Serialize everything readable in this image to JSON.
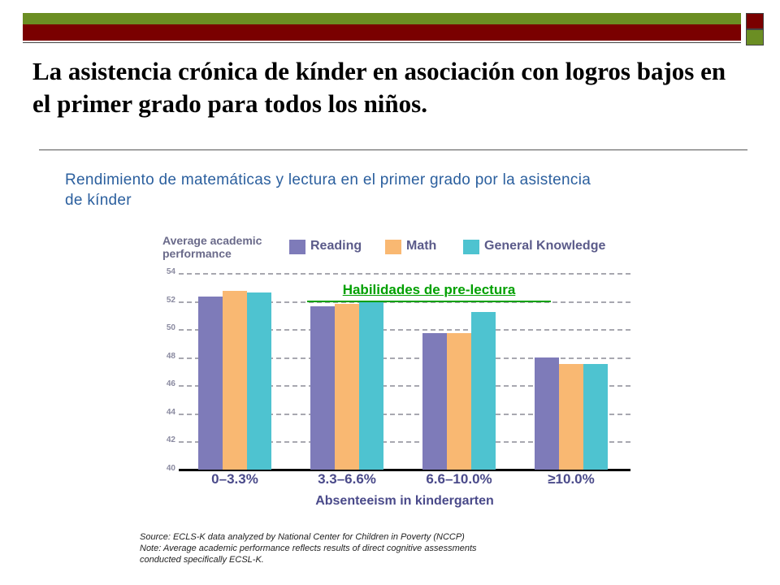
{
  "slide": {
    "title": "La asistencia crónica de kínder en asociación con logros bajos en el primer grado para todos los niños.",
    "subtitle": "Rendimiento de matemáticas y lectura en el primer grado por la asistencia de kínder",
    "annotation": "Habilidades de pre-lectura",
    "source_note": "Source: ECLS-K  data analyzed by National Center for Children in Poverty (NCCP)",
    "performance_note": "Note: Average academic performance reflects results of direct cognitive assessments",
    "ecsl_note": "conducted specifically  ECSL-K.",
    "colors": {
      "band_green": "#6b8e23",
      "band_maroon": "#7a0000",
      "title_blue": "#2b5f9e",
      "annotation_green": "#00a000"
    }
  },
  "chart_data": {
    "type": "bar",
    "ylabel": "Average academic performance",
    "xlabel": "Absenteeism in kindergarten",
    "categories": [
      "0–3.3%",
      "3.3–6.6%",
      "6.6–10.0%",
      "≥10.0%"
    ],
    "series": [
      {
        "name": "Reading",
        "color": "#7e7bb9",
        "values": [
          52.3,
          51.6,
          49.7,
          48.0
        ]
      },
      {
        "name": "Math",
        "color": "#f9b872",
        "values": [
          52.7,
          51.8,
          49.7,
          47.5
        ]
      },
      {
        "name": "General Knowledge",
        "color": "#4ec3d0",
        "values": [
          52.6,
          52.0,
          51.2,
          47.5
        ]
      }
    ],
    "ylim": [
      40,
      54
    ],
    "yticks": [
      40,
      42,
      44,
      46,
      48,
      50,
      52,
      54
    ],
    "grid": true,
    "legend": "top"
  }
}
